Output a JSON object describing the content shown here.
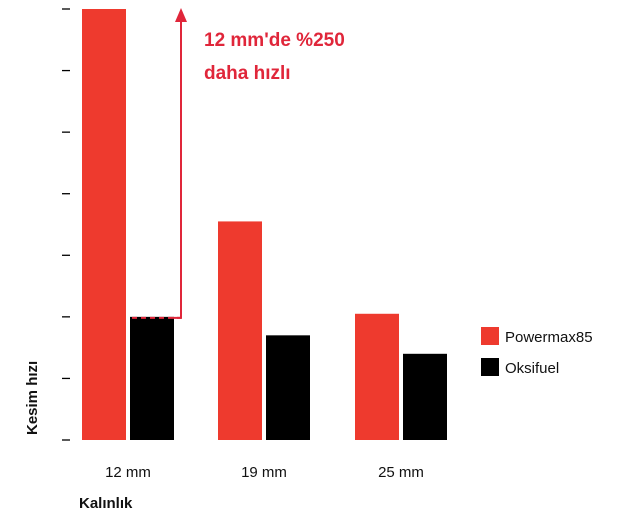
{
  "chart_data": {
    "type": "bar",
    "title": "",
    "xlabel": "Kalınlık",
    "ylabel": "Kesim hızı",
    "categories": [
      "12 mm",
      "19 mm",
      "25 mm"
    ],
    "series": [
      {
        "name": "Powermax85",
        "color": "#ee3a2e",
        "values": [
          7.0,
          3.55,
          2.05
        ]
      },
      {
        "name": "Oksifuel",
        "color": "#000000",
        "values": [
          2.0,
          1.7,
          1.4
        ]
      }
    ],
    "ylim": [
      0,
      7
    ],
    "y_ticks_labeled": false,
    "grid": false,
    "legend_position": "right",
    "annotation": {
      "lines": [
        "12 mm'de %250",
        "daha hızlı"
      ],
      "color": "#e0263a"
    }
  }
}
